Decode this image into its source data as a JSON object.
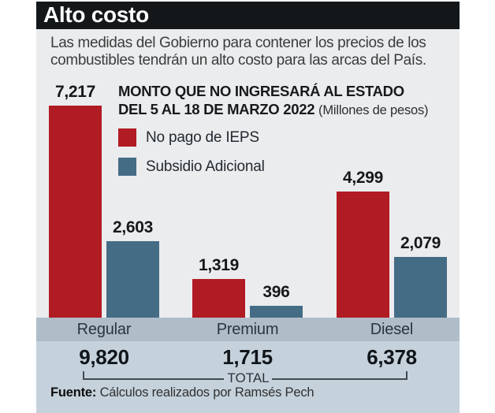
{
  "title": "Alto costo",
  "intro": "Las medidas del Gobierno para contener los precios de los combustibles tendrán un alto costo para las arcas del País.",
  "heading": {
    "line1": "MONTO QUE NO INGRESARÁ AL ESTADO",
    "line2": "DEL 5 AL 18 DE MARZO 2022",
    "unit": "(Millones de pesos)"
  },
  "legend": [
    {
      "label": "No pago de IEPS",
      "color": "#b11b23"
    },
    {
      "label": "Subsidio Adicional",
      "color": "#456c85"
    }
  ],
  "chart_data": {
    "type": "bar",
    "title": "MONTO QUE NO INGRESARÁ AL ESTADO DEL 5 AL 18 DE MARZO 2022",
    "unit": "Millones de pesos",
    "categories": [
      "Regular",
      "Premium",
      "Diesel"
    ],
    "series": [
      {
        "name": "No pago de IEPS",
        "color": "#b11b23",
        "values": [
          7217,
          1319,
          4299
        ],
        "labels": [
          "7,217",
          "1,319",
          "4,299"
        ]
      },
      {
        "name": "Subsidio Adicional",
        "color": "#456c85",
        "values": [
          2603,
          396,
          2079
        ],
        "labels": [
          "2,603",
          "396",
          "2,079"
        ]
      }
    ],
    "totals": {
      "values": [
        9820,
        1715,
        6378
      ],
      "labels": [
        "9,820",
        "1,715",
        "6,378"
      ]
    },
    "ylim": [
      0,
      7217
    ],
    "legend_position": "top-left",
    "grid": false
  },
  "total_label": "TOTAL",
  "source": {
    "label": "Fuente:",
    "text": " Cálculos realizados por Ramsés Pech"
  },
  "colors": {
    "accent_red": "#b11b23",
    "accent_blue": "#456c85",
    "band_dark": "#afbdc9",
    "band_light": "#c5d2dc",
    "panel_bg": "#eaecee",
    "titlebar_bg": "#14171a"
  }
}
